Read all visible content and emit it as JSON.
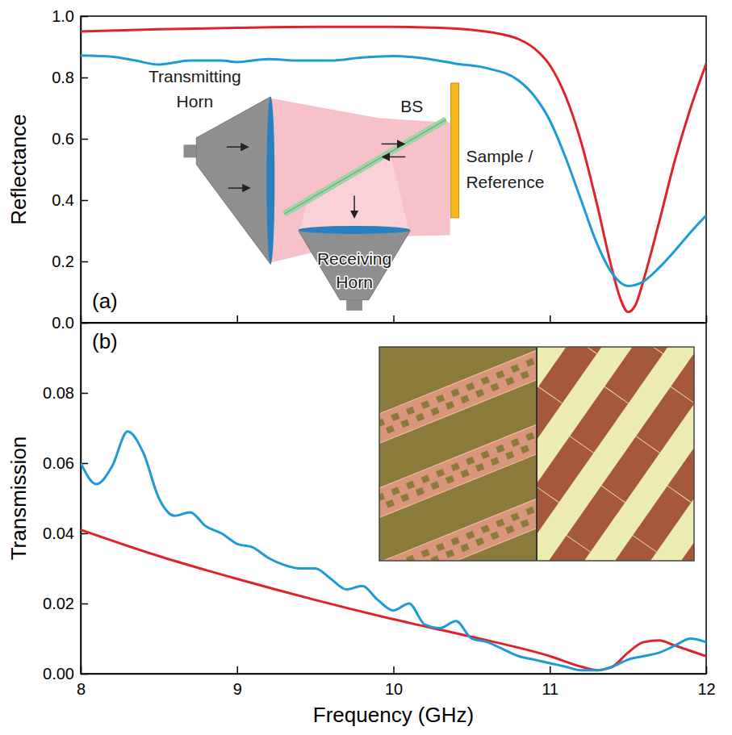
{
  "chart_data": [
    {
      "type": "line",
      "label": "(a)",
      "y_label": "Reflectance",
      "xlim": [
        8,
        12
      ],
      "xticks": [
        8,
        9,
        10,
        11,
        12
      ],
      "ylim": [
        0,
        1
      ],
      "yticks": [
        {
          "value": 0,
          "label": "0.0"
        },
        0.2,
        0.4,
        0.6,
        0.8,
        {
          "value": 1,
          "label": "1.0"
        }
      ],
      "tick_labels": "y",
      "annotations": [
        "Transmitting Horn",
        "BS",
        "Sample / Reference",
        "Receiving Horn"
      ],
      "series": [
        {
          "color": "#e0232b",
          "x": [
            8,
            8.5,
            9,
            9.5,
            10,
            10.3,
            10.5,
            10.7,
            10.8,
            10.9,
            11,
            11.1,
            11.2,
            11.3,
            11.4,
            11.45,
            11.5,
            11.55,
            11.6,
            11.7,
            11.8,
            11.9,
            12
          ],
          "values": [
            0.95,
            0.957,
            0.962,
            0.965,
            0.965,
            0.962,
            0.955,
            0.94,
            0.925,
            0.895,
            0.84,
            0.74,
            0.59,
            0.39,
            0.17,
            0.08,
            0.035,
            0.06,
            0.14,
            0.33,
            0.53,
            0.7,
            0.845
          ]
        },
        {
          "color": "#1e9ad6",
          "x": [
            8,
            8.2,
            8.35,
            8.5,
            8.7,
            8.9,
            9,
            9.2,
            9.4,
            9.6,
            9.8,
            10,
            10.2,
            10.4,
            10.6,
            10.8,
            10.9,
            11,
            11.1,
            11.2,
            11.3,
            11.4,
            11.5,
            11.6,
            11.7,
            11.8,
            11.9,
            12
          ],
          "values": [
            0.872,
            0.868,
            0.855,
            0.842,
            0.855,
            0.855,
            0.85,
            0.86,
            0.855,
            0.855,
            0.865,
            0.87,
            0.862,
            0.845,
            0.83,
            0.79,
            0.74,
            0.66,
            0.54,
            0.4,
            0.26,
            0.16,
            0.12,
            0.135,
            0.18,
            0.235,
            0.295,
            0.35
          ]
        }
      ]
    },
    {
      "type": "line",
      "label": "(b)",
      "x_label": "Frequency (GHz)",
      "y_label": "Transmission",
      "xlim": [
        8,
        12
      ],
      "xticks": [
        8,
        9,
        10,
        11,
        12
      ],
      "ylim": [
        0,
        0.1
      ],
      "yticks": [
        {
          "value": 0,
          "label": "0.00"
        },
        0.02,
        0.04,
        0.06,
        0.08
      ],
      "series": [
        {
          "color": "#e0232b",
          "x": [
            8,
            8.5,
            9,
            9.5,
            10,
            10.5,
            11,
            11.2,
            11.3,
            11.4,
            11.5,
            11.6,
            11.7,
            11.8,
            12
          ],
          "values": [
            0.041,
            0.0335,
            0.027,
            0.021,
            0.0155,
            0.0105,
            0.005,
            0.002,
            0.001,
            0.002,
            0.006,
            0.009,
            0.0095,
            0.008,
            0.005
          ]
        },
        {
          "color": "#1e9ad6",
          "x": [
            8,
            8.1,
            8.2,
            8.3,
            8.4,
            8.5,
            8.6,
            8.7,
            8.8,
            8.9,
            9,
            9.1,
            9.2,
            9.3,
            9.4,
            9.5,
            9.6,
            9.7,
            9.8,
            9.9,
            10,
            10.1,
            10.2,
            10.3,
            10.4,
            10.5,
            10.6,
            10.7,
            10.8,
            10.9,
            11,
            11.1,
            11.2,
            11.3,
            11.4,
            11.5,
            11.6,
            11.7,
            11.8,
            11.9,
            12
          ],
          "values": [
            0.06,
            0.054,
            0.059,
            0.069,
            0.063,
            0.05,
            0.045,
            0.046,
            0.042,
            0.04,
            0.037,
            0.036,
            0.033,
            0.031,
            0.03,
            0.03,
            0.027,
            0.024,
            0.025,
            0.021,
            0.018,
            0.02,
            0.014,
            0.013,
            0.015,
            0.01,
            0.009,
            0.007,
            0.005,
            0.004,
            0.003,
            0.002,
            0.001,
            0.001,
            0.002,
            0.004,
            0.005,
            0.006,
            0.008,
            0.01,
            0.009
          ]
        }
      ]
    }
  ]
}
